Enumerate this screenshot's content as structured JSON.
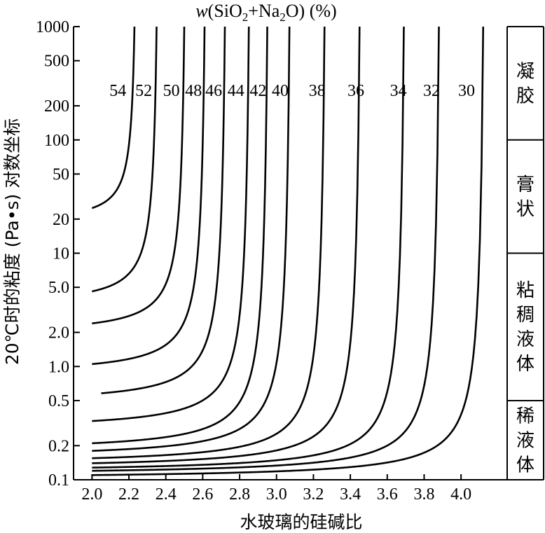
{
  "chart_data": {
    "type": "line",
    "title": "w(SiO2+Na2O) (%)",
    "title_parts": {
      "italic": "w",
      "a": "(SiO",
      "sub1": "2",
      "b": "+Na",
      "sub2": "2",
      "c": "O) (%)"
    },
    "xlabel": "水玻璃的硅碱比",
    "ylabel": "20℃时的粘度 (Pa•s) 对数坐标",
    "y_scale": "log",
    "xlim": [
      1.9,
      4.25
    ],
    "ylim": [
      0.1,
      1000
    ],
    "x_ticks": [
      2.0,
      2.2,
      2.4,
      2.6,
      2.8,
      3.0,
      3.2,
      3.4,
      3.6,
      3.8,
      4.0
    ],
    "x_tick_labels": [
      "2.0",
      "2.2",
      "2.4",
      "2.6",
      "2.8",
      "3.0",
      "3.2",
      "3.4",
      "3.6",
      "3.8",
      "4.0"
    ],
    "y_ticks": [
      0.1,
      0.2,
      0.5,
      1.0,
      2.0,
      5.0,
      10,
      20,
      50,
      100,
      200,
      500,
      1000
    ],
    "y_tick_labels": [
      "0.1",
      "0.2",
      "0.5",
      "1.0",
      "2.0",
      "5.0",
      "10",
      "20",
      "50",
      "100",
      "200",
      "500",
      "1000"
    ],
    "grid": false,
    "regions": [
      {
        "label": "凝胶",
        "y_range": [
          100,
          1000
        ]
      },
      {
        "label": "膏状",
        "y_range": [
          10,
          100
        ]
      },
      {
        "label": "粘稠液体",
        "y_range": [
          0.5,
          10
        ]
      },
      {
        "label": "稀液体",
        "y_range": [
          0.1,
          0.5
        ]
      }
    ],
    "series": [
      {
        "name": "54",
        "x0": 2.0,
        "y0": 25,
        "xa": 2.25,
        "label_x": 2.14
      },
      {
        "name": "52",
        "x0": 2.0,
        "y0": 4.6,
        "xa": 2.37,
        "label_x": 2.28
      },
      {
        "name": "50",
        "x0": 2.0,
        "y0": 2.4,
        "xa": 2.52,
        "label_x": 2.43
      },
      {
        "name": "48",
        "x0": 2.0,
        "y0": 1.05,
        "xa": 2.63,
        "label_x": 2.55
      },
      {
        "name": "46",
        "x0": 2.05,
        "y0": 0.58,
        "xa": 2.74,
        "label_x": 2.66
      },
      {
        "name": "44",
        "x0": 2.0,
        "y0": 0.33,
        "xa": 2.87,
        "label_x": 2.78
      },
      {
        "name": "42",
        "x0": 2.0,
        "y0": 0.21,
        "xa": 2.97,
        "label_x": 2.9
      },
      {
        "name": "40",
        "x0": 2.0,
        "y0": 0.18,
        "xa": 3.09,
        "label_x": 3.02
      },
      {
        "name": "38",
        "x0": 2.0,
        "y0": 0.155,
        "xa": 3.28,
        "label_x": 3.22
      },
      {
        "name": "36",
        "x0": 2.0,
        "y0": 0.14,
        "xa": 3.47,
        "label_x": 3.43
      },
      {
        "name": "34",
        "x0": 2.0,
        "y0": 0.128,
        "xa": 3.71,
        "label_x": 3.66
      },
      {
        "name": "32",
        "x0": 2.0,
        "y0": 0.12,
        "xa": 3.9,
        "label_x": 3.84
      },
      {
        "name": "30",
        "x0": 2.0,
        "y0": 0.11,
        "xa": 4.14,
        "label_x": 4.03
      }
    ]
  }
}
